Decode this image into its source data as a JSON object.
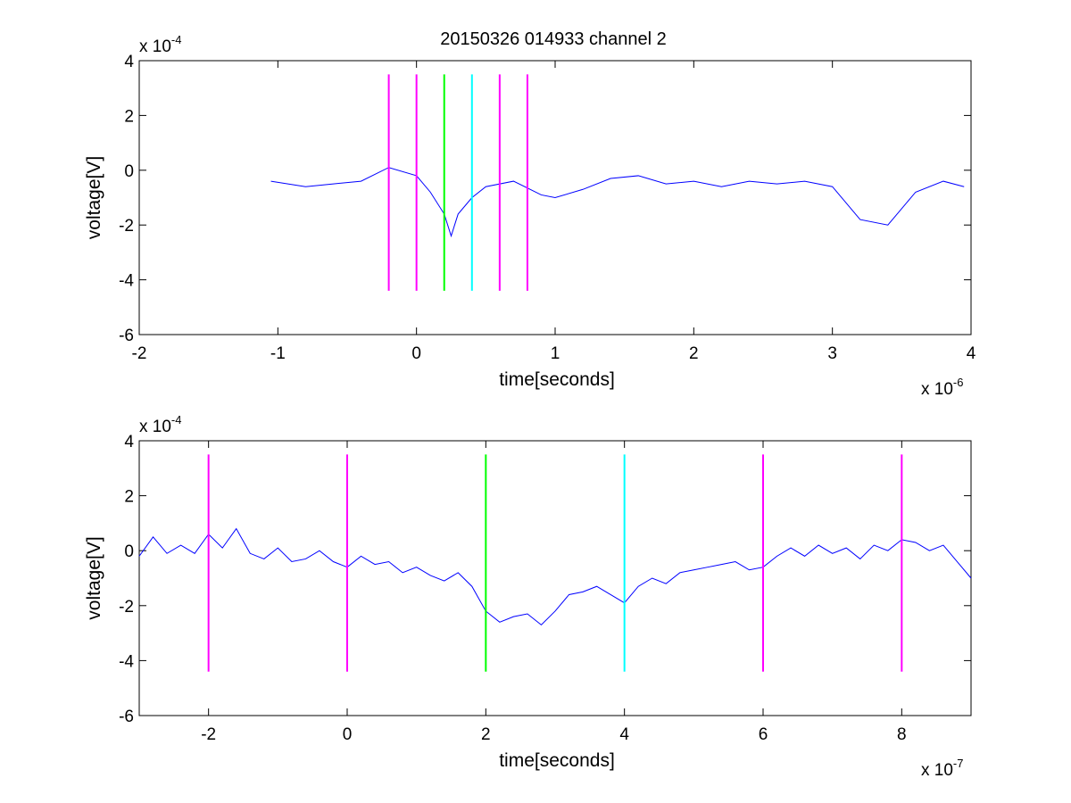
{
  "chart_data": [
    {
      "type": "line",
      "title": "20150326 014933 channel 2",
      "xlabel": "time[seconds]",
      "ylabel": "voltage[V]",
      "xlim": [
        -2e-06,
        4e-06
      ],
      "ylim": [
        -0.0006,
        0.0004
      ],
      "x_ticks": [
        -2,
        -1,
        0,
        1,
        2,
        3,
        4
      ],
      "y_ticks": [
        -6,
        -4,
        -2,
        0,
        2,
        4
      ],
      "x_exponent": "-6",
      "y_exponent": "-4",
      "grid": false,
      "colors": {
        "series": "#0000ff",
        "axes": "#000000"
      },
      "series": [
        {
          "time": [
            -1.05e-06,
            -8e-07,
            -6e-07,
            -4e-07,
            -2e-07,
            0.0,
            1e-07,
            2e-07,
            2.5e-07,
            3e-07,
            4e-07,
            5e-07,
            7e-07,
            9e-07,
            1e-06,
            1.2e-06,
            1.4e-06,
            1.6e-06,
            1.8e-06,
            2e-06,
            2.2e-06,
            2.4e-06,
            2.6e-06,
            2.8e-06,
            3e-06,
            3.2e-06,
            3.4e-06,
            3.6e-06,
            3.8e-06,
            3.95e-06
          ],
          "voltage": [
            -4e-05,
            -6e-05,
            -5e-05,
            -4e-05,
            1e-05,
            -2e-05,
            -8e-05,
            -0.00016,
            -0.00024,
            -0.00016,
            -0.0001,
            -6e-05,
            -4e-05,
            -9e-05,
            -0.0001,
            -7e-05,
            -3e-05,
            -2e-05,
            -5e-05,
            -4e-05,
            -6e-05,
            -4e-05,
            -5e-05,
            -4e-05,
            -6e-05,
            -0.00018,
            -0.0002,
            -8e-05,
            -4e-05,
            -6e-05
          ]
        }
      ],
      "markers": [
        {
          "x": -2e-07,
          "color": "#ff00ff",
          "y_range": [
            -0.00044,
            0.00035
          ]
        },
        {
          "x": 0.0,
          "color": "#ff00ff",
          "y_range": [
            -0.00044,
            0.00035
          ]
        },
        {
          "x": 2e-07,
          "color": "#00ff00",
          "y_range": [
            -0.00044,
            0.00035
          ]
        },
        {
          "x": 4e-07,
          "color": "#00ffff",
          "y_range": [
            -0.00044,
            0.00035
          ]
        },
        {
          "x": 6e-07,
          "color": "#ff00ff",
          "y_range": [
            -0.00044,
            0.00035
          ]
        },
        {
          "x": 8e-07,
          "color": "#ff00ff",
          "y_range": [
            -0.00044,
            0.00035
          ]
        }
      ]
    },
    {
      "type": "line",
      "title": "",
      "xlabel": "time[seconds]",
      "ylabel": "voltage[V]",
      "xlim": [
        -3e-07,
        9e-07
      ],
      "ylim": [
        -0.0006,
        0.0004
      ],
      "x_ticks": [
        -2,
        0,
        2,
        4,
        6,
        8
      ],
      "y_ticks": [
        -6,
        -4,
        -2,
        0,
        2,
        4
      ],
      "x_exponent": "-7",
      "y_exponent": "-4",
      "grid": false,
      "colors": {
        "series": "#0000ff",
        "axes": "#000000"
      },
      "series": [
        {
          "time": [
            -3e-07,
            -2.8e-07,
            -2.6e-07,
            -2.4e-07,
            -2.2e-07,
            -2e-07,
            -1.8e-07,
            -1.6e-07,
            -1.4e-07,
            -1.2e-07,
            -1e-07,
            -8e-08,
            -6e-08,
            -4e-08,
            -2e-08,
            0,
            2e-08,
            4e-08,
            6e-08,
            8e-08,
            1e-07,
            1.2e-07,
            1.4e-07,
            1.6e-07,
            1.8e-07,
            2e-07,
            2.2e-07,
            2.4e-07,
            2.6e-07,
            2.8e-07,
            3e-07,
            3.2e-07,
            3.4e-07,
            3.6e-07,
            3.8e-07,
            4e-07,
            4.2e-07,
            4.4e-07,
            4.6e-07,
            4.8e-07,
            5e-07,
            5.2e-07,
            5.4e-07,
            5.6e-07,
            5.8e-07,
            6e-07,
            6.2e-07,
            6.4e-07,
            6.6e-07,
            6.8e-07,
            7e-07,
            7.2e-07,
            7.4e-07,
            7.6e-07,
            7.8e-07,
            8e-07,
            8.2e-07,
            8.4e-07,
            8.6e-07,
            8.8e-07,
            9e-07
          ],
          "voltage": [
            -2e-05,
            5e-05,
            -1e-05,
            2e-05,
            -1e-05,
            6e-05,
            1e-05,
            8e-05,
            -1e-05,
            -3e-05,
            1e-05,
            -4e-05,
            -3e-05,
            0.0,
            -4e-05,
            -6e-05,
            -2e-05,
            -5e-05,
            -4e-05,
            -8e-05,
            -6e-05,
            -9e-05,
            -0.00011,
            -8e-05,
            -0.00013,
            -0.00022,
            -0.00026,
            -0.00024,
            -0.00023,
            -0.00027,
            -0.00022,
            -0.00016,
            -0.00015,
            -0.00013,
            -0.00016,
            -0.00019,
            -0.00013,
            -0.0001,
            -0.00012,
            -8e-05,
            -7e-05,
            -6e-05,
            -5e-05,
            -4e-05,
            -7e-05,
            -6e-05,
            -2e-05,
            1e-05,
            -2e-05,
            2e-05,
            -1e-05,
            1e-05,
            -3e-05,
            2e-05,
            0.0,
            4e-05,
            3e-05,
            0.0,
            2e-05,
            -4e-05,
            -0.0001
          ]
        }
      ],
      "markers": [
        {
          "x": -2e-07,
          "color": "#ff00ff",
          "y_range": [
            -0.00044,
            0.00035
          ]
        },
        {
          "x": 0.0,
          "color": "#ff00ff",
          "y_range": [
            -0.00044,
            0.00035
          ]
        },
        {
          "x": 2e-07,
          "color": "#00ff00",
          "y_range": [
            -0.00044,
            0.00035
          ]
        },
        {
          "x": 4e-07,
          "color": "#00ffff",
          "y_range": [
            -0.00044,
            0.00035
          ]
        },
        {
          "x": 6e-07,
          "color": "#ff00ff",
          "y_range": [
            -0.00044,
            0.00035
          ]
        },
        {
          "x": 8e-07,
          "color": "#ff00ff",
          "y_range": [
            -0.00044,
            0.00035
          ]
        }
      ]
    }
  ]
}
